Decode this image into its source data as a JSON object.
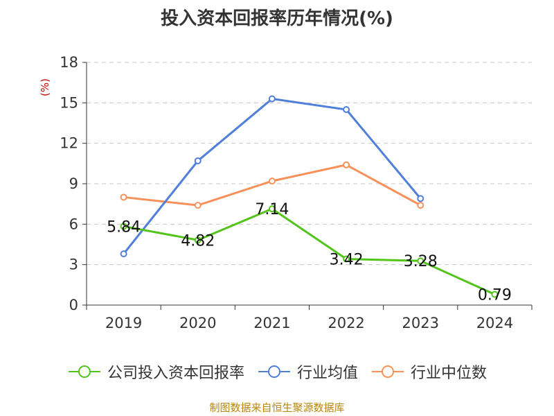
{
  "chart_data": {
    "type": "line",
    "title": "投入资本回报率历年情况(%)",
    "ylabel": "(%)",
    "xlabel": "",
    "categories": [
      "2019",
      "2020",
      "2021",
      "2022",
      "2023",
      "2024"
    ],
    "ylim": [
      0,
      18
    ],
    "yticks": [
      0,
      3,
      6,
      9,
      12,
      15,
      18
    ],
    "grid": true,
    "legend_position": "bottom",
    "series": [
      {
        "name": "公司投入资本回报率",
        "color": "#52c41a",
        "values": [
          5.84,
          4.82,
          7.14,
          3.42,
          3.28,
          0.79
        ],
        "labels": [
          "5.84",
          "4.82",
          "7.14",
          "3.42",
          "3.28",
          "0.79"
        ]
      },
      {
        "name": "行业均值",
        "color": "#4f7fd9",
        "values": [
          3.8,
          10.7,
          15.3,
          14.5,
          7.9,
          null
        ]
      },
      {
        "name": "行业中位数",
        "color": "#f79059",
        "values": [
          8.0,
          7.4,
          9.2,
          10.4,
          7.4,
          null
        ]
      }
    ],
    "source": "制图数据来自恒生聚源数据库"
  }
}
